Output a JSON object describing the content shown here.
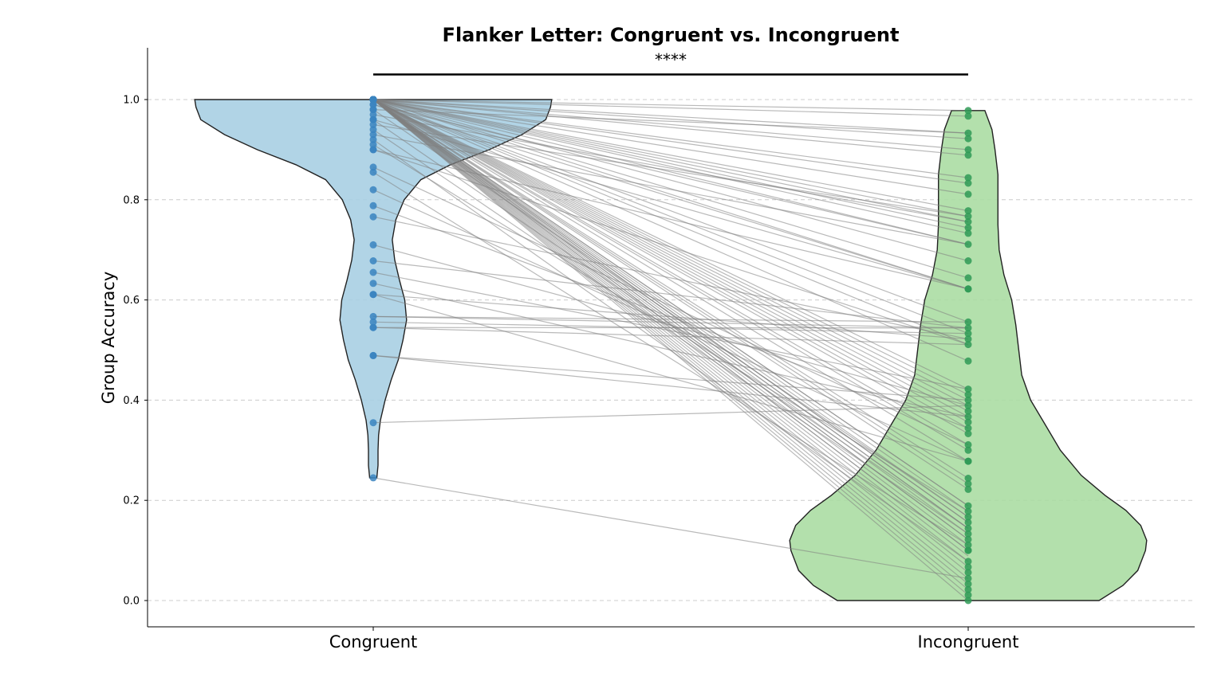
{
  "chart_data": {
    "type": "violin",
    "title": "Flanker Letter: Congruent vs. Incongruent",
    "ylabel": "Group Accuracy",
    "xlabel": "",
    "categories": [
      "Congruent",
      "Incongruent"
    ],
    "ylim": [
      -0.05,
      1.1
    ],
    "yticks": [
      0.0,
      0.2,
      0.4,
      0.6,
      0.8,
      1.0
    ],
    "ytick_labels": [
      "0.0",
      "0.2",
      "0.4",
      "0.6",
      "0.8",
      "1.0"
    ],
    "grid": "y-dashed",
    "significance": {
      "label": "****",
      "between": [
        "Congruent",
        "Incongruent"
      ],
      "y": 1.05
    },
    "colors": {
      "congruent_fill": "#a6cee3",
      "congruent_point": "#3a84c0",
      "incongruent_fill": "#a8dca0",
      "incongruent_point": "#2f9a56",
      "paired_line": "#808080",
      "violin_edge": "#222222"
    },
    "violins": [
      {
        "name": "Congruent",
        "max_half_width": 0.3,
        "profile": [
          [
            0.245,
            0.006
          ],
          [
            0.27,
            0.008
          ],
          [
            0.3,
            0.008
          ],
          [
            0.33,
            0.009
          ],
          [
            0.36,
            0.012
          ],
          [
            0.4,
            0.02
          ],
          [
            0.44,
            0.03
          ],
          [
            0.48,
            0.042
          ],
          [
            0.52,
            0.05
          ],
          [
            0.56,
            0.056
          ],
          [
            0.6,
            0.053
          ],
          [
            0.64,
            0.044
          ],
          [
            0.68,
            0.036
          ],
          [
            0.72,
            0.032
          ],
          [
            0.76,
            0.038
          ],
          [
            0.8,
            0.052
          ],
          [
            0.84,
            0.08
          ],
          [
            0.87,
            0.13
          ],
          [
            0.9,
            0.195
          ],
          [
            0.93,
            0.25
          ],
          [
            0.96,
            0.29
          ],
          [
            0.985,
            0.298
          ],
          [
            1.0,
            0.3
          ]
        ],
        "points": [
          1.0,
          1.0,
          1.0,
          1.0,
          1.0,
          1.0,
          1.0,
          1.0,
          1.0,
          1.0,
          1.0,
          1.0,
          1.0,
          1.0,
          1.0,
          1.0,
          1.0,
          1.0,
          1.0,
          1.0,
          1.0,
          1.0,
          1.0,
          1.0,
          1.0,
          1.0,
          1.0,
          1.0,
          1.0,
          1.0,
          1.0,
          1.0,
          1.0,
          1.0,
          1.0,
          1.0,
          1.0,
          1.0,
          1.0,
          1.0,
          1.0,
          1.0,
          1.0,
          1.0,
          1.0,
          1.0,
          1.0,
          1.0,
          1.0,
          1.0,
          1.0,
          1.0,
          1.0,
          1.0,
          1.0,
          1.0,
          1.0,
          1.0,
          1.0,
          1.0,
          1.0,
          1.0,
          1.0,
          1.0,
          1.0,
          1.0,
          1.0,
          1.0,
          1.0,
          1.0,
          0.99,
          0.99,
          0.98,
          0.98,
          0.97,
          0.96,
          0.96,
          0.95,
          0.94,
          0.93,
          0.92,
          0.91,
          0.9,
          0.9,
          0.865,
          0.855,
          0.82,
          0.788,
          0.766,
          0.71,
          0.678,
          0.655,
          0.633,
          0.611,
          0.611,
          0.567,
          0.556,
          0.545,
          0.545,
          0.489,
          0.489,
          0.355,
          0.245
        ]
      },
      {
        "name": "Incongruent",
        "max_half_width": 0.3,
        "profile": [
          [
            0.0,
            0.22
          ],
          [
            0.03,
            0.26
          ],
          [
            0.06,
            0.285
          ],
          [
            0.1,
            0.298
          ],
          [
            0.12,
            0.3
          ],
          [
            0.15,
            0.29
          ],
          [
            0.18,
            0.265
          ],
          [
            0.21,
            0.23
          ],
          [
            0.25,
            0.19
          ],
          [
            0.3,
            0.155
          ],
          [
            0.35,
            0.13
          ],
          [
            0.4,
            0.105
          ],
          [
            0.45,
            0.09
          ],
          [
            0.5,
            0.085
          ],
          [
            0.55,
            0.08
          ],
          [
            0.6,
            0.073
          ],
          [
            0.65,
            0.06
          ],
          [
            0.7,
            0.052
          ],
          [
            0.75,
            0.05
          ],
          [
            0.8,
            0.05
          ],
          [
            0.85,
            0.05
          ],
          [
            0.9,
            0.045
          ],
          [
            0.94,
            0.04
          ],
          [
            0.978,
            0.028
          ]
        ],
        "points": [
          0.978,
          0.967,
          0.933,
          0.922,
          0.9,
          0.889,
          0.844,
          0.833,
          0.811,
          0.778,
          0.767,
          0.756,
          0.744,
          0.733,
          0.711,
          0.678,
          0.644,
          0.622,
          0.622,
          0.556,
          0.544,
          0.533,
          0.522,
          0.511,
          0.478,
          0.422,
          0.411,
          0.4,
          0.389,
          0.378,
          0.367,
          0.356,
          0.344,
          0.333,
          0.311,
          0.3,
          0.278,
          0.278,
          0.244,
          0.233,
          0.222,
          0.189,
          0.178,
          0.167,
          0.156,
          0.144,
          0.133,
          0.122,
          0.111,
          0.1,
          0.1,
          0.078,
          0.067,
          0.056,
          0.044,
          0.033,
          0.022,
          0.011,
          0.0
        ]
      }
    ],
    "paired": [
      [
        1.0,
        0.978
      ],
      [
        1.0,
        0.967
      ],
      [
        1.0,
        0.933
      ],
      [
        1.0,
        0.922
      ],
      [
        1.0,
        0.9
      ],
      [
        1.0,
        0.889
      ],
      [
        1.0,
        0.844
      ],
      [
        1.0,
        0.833
      ],
      [
        1.0,
        0.811
      ],
      [
        1.0,
        0.778
      ],
      [
        1.0,
        0.767
      ],
      [
        1.0,
        0.756
      ],
      [
        1.0,
        0.744
      ],
      [
        1.0,
        0.733
      ],
      [
        1.0,
        0.711
      ],
      [
        1.0,
        0.678
      ],
      [
        1.0,
        0.644
      ],
      [
        1.0,
        0.622
      ],
      [
        1.0,
        0.556
      ],
      [
        1.0,
        0.533
      ],
      [
        1.0,
        0.511
      ],
      [
        1.0,
        0.478
      ],
      [
        1.0,
        0.422
      ],
      [
        1.0,
        0.411
      ],
      [
        1.0,
        0.4
      ],
      [
        1.0,
        0.389
      ],
      [
        1.0,
        0.378
      ],
      [
        1.0,
        0.367
      ],
      [
        1.0,
        0.356
      ],
      [
        1.0,
        0.344
      ],
      [
        1.0,
        0.333
      ],
      [
        1.0,
        0.311
      ],
      [
        1.0,
        0.3
      ],
      [
        1.0,
        0.278
      ],
      [
        1.0,
        0.244
      ],
      [
        1.0,
        0.233
      ],
      [
        1.0,
        0.222
      ],
      [
        1.0,
        0.189
      ],
      [
        1.0,
        0.178
      ],
      [
        1.0,
        0.167
      ],
      [
        1.0,
        0.156
      ],
      [
        1.0,
        0.144
      ],
      [
        1.0,
        0.133
      ],
      [
        1.0,
        0.122
      ],
      [
        1.0,
        0.111
      ],
      [
        1.0,
        0.1
      ],
      [
        1.0,
        0.1
      ],
      [
        1.0,
        0.078
      ],
      [
        1.0,
        0.067
      ],
      [
        1.0,
        0.056
      ],
      [
        1.0,
        0.044
      ],
      [
        1.0,
        0.033
      ],
      [
        1.0,
        0.022
      ],
      [
        1.0,
        0.011
      ],
      [
        1.0,
        0.0
      ],
      [
        1.0,
        0.189
      ],
      [
        1.0,
        0.156
      ],
      [
        1.0,
        0.122
      ],
      [
        1.0,
        0.144
      ],
      [
        1.0,
        0.089
      ],
      [
        0.99,
        0.711
      ],
      [
        0.99,
        0.622
      ],
      [
        0.98,
        0.933
      ],
      [
        0.98,
        0.167
      ],
      [
        0.97,
        0.756
      ],
      [
        0.96,
        0.144
      ],
      [
        0.96,
        0.622
      ],
      [
        0.95,
        0.767
      ],
      [
        0.94,
        0.133
      ],
      [
        0.93,
        0.711
      ],
      [
        0.92,
        0.078
      ],
      [
        0.91,
        0.178
      ],
      [
        0.9,
        0.511
      ],
      [
        0.9,
        0.622
      ],
      [
        0.865,
        0.311
      ],
      [
        0.855,
        0.111
      ],
      [
        0.82,
        0.278
      ],
      [
        0.788,
        0.344
      ],
      [
        0.766,
        0.522
      ],
      [
        0.71,
        0.389
      ],
      [
        0.678,
        0.544
      ],
      [
        0.655,
        0.422
      ],
      [
        0.633,
        0.367
      ],
      [
        0.611,
        0.522
      ],
      [
        0.611,
        0.278
      ],
      [
        0.567,
        0.556
      ],
      [
        0.567,
        0.544
      ],
      [
        0.556,
        0.533
      ],
      [
        0.545,
        0.544
      ],
      [
        0.545,
        0.511
      ],
      [
        0.489,
        0.4
      ],
      [
        0.489,
        0.367
      ],
      [
        0.355,
        0.389
      ],
      [
        0.245,
        0.044
      ]
    ]
  }
}
